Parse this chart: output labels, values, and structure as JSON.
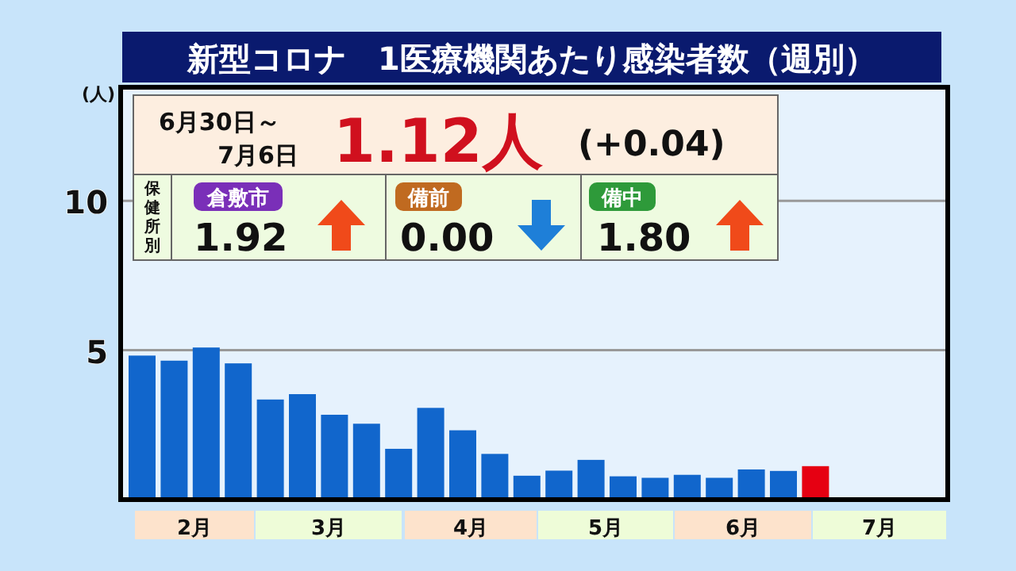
{
  "chart_data": {
    "type": "bar",
    "title": "新型コロナ　1医療機関あたり感染者数（週別）",
    "ylabel": "(人)",
    "categories": [
      null,
      null,
      null,
      null,
      null,
      null,
      null,
      null,
      null,
      null,
      null,
      null,
      null,
      null,
      null,
      null,
      null,
      null,
      null,
      null,
      null,
      null
    ],
    "values": [
      4.82,
      4.65,
      5.09,
      4.56,
      3.35,
      3.53,
      2.84,
      2.54,
      1.7,
      3.07,
      2.32,
      1.53,
      0.8,
      0.97,
      1.33,
      0.78,
      0.73,
      0.83,
      0.73,
      1.01,
      0.96,
      1.12
    ],
    "colors": [
      "#1166cc",
      "#1166cc",
      "#1166cc",
      "#1166cc",
      "#1166cc",
      "#1166cc",
      "#1166cc",
      "#1166cc",
      "#1166cc",
      "#1166cc",
      "#1166cc",
      "#1166cc",
      "#1166cc",
      "#1166cc",
      "#1166cc",
      "#1166cc",
      "#1166cc",
      "#1166cc",
      "#1166cc",
      "#1166cc",
      "#1166cc",
      "#e60012"
    ],
    "ylim": [
      0,
      13.8
    ],
    "yticks": [
      5,
      10
    ],
    "grid": "y",
    "annotations": [
      "6月30日～",
      "7月6日",
      "1.12人",
      "(+0.04)",
      "保健所別",
      "倉敷市",
      "1.92",
      "備前",
      "0.00",
      "備中",
      "1.80",
      "2月",
      "3月",
      "4月",
      "5月",
      "6月",
      "7月"
    ]
  }
}
